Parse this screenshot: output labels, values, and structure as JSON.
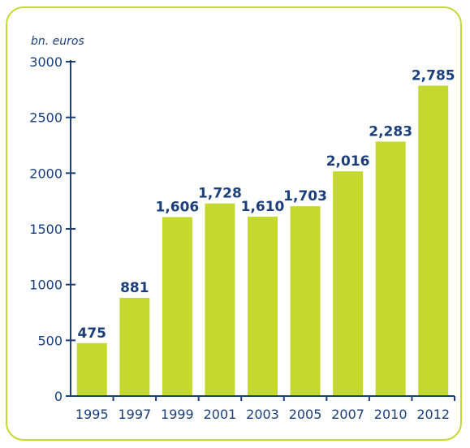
{
  "chart_data": {
    "type": "bar",
    "ylabel": "bn. euros",
    "categories": [
      "1995",
      "1997",
      "1999",
      "2001",
      "2003",
      "2005",
      "2007",
      "2010",
      "2012"
    ],
    "values": [
      475,
      881,
      1606,
      1728,
      1610,
      1703,
      2016,
      2283,
      2785
    ],
    "value_labels": [
      "475",
      "881",
      "1,606",
      "1,728",
      "1,610",
      "1,703",
      "2,016",
      "2,283",
      "2,785"
    ],
    "yticks": [
      "0",
      "500",
      "1000",
      "1500",
      "2000",
      "2500",
      "3000"
    ],
    "ytick_values": [
      0,
      500,
      1000,
      1500,
      2000,
      2500,
      3000
    ],
    "ylim": [
      0,
      3000
    ],
    "grid": false,
    "legend": "none"
  },
  "colors": {
    "bar": "#c5d82e",
    "axis": "#1a3f7a",
    "text": "#1a3f7a",
    "frame": "#c5d82e"
  }
}
